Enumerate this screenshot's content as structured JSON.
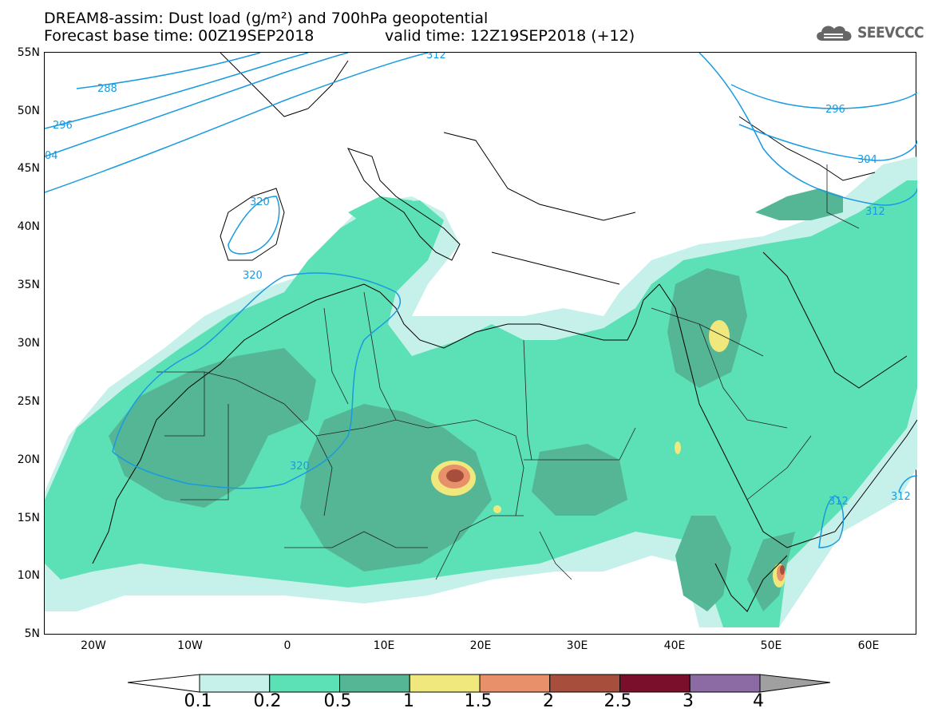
{
  "header": {
    "title_line1": "DREAM8-assim: Dust load (g/m²) and 700hPa geopotential",
    "title_line2": "Forecast base time: 00Z19SEP2018",
    "valid_time": "valid time: 12Z19SEP2018 (+12)",
    "logo_text": "SEEVCCC"
  },
  "map": {
    "lat_ticks": [
      "55N",
      "50N",
      "45N",
      "40N",
      "35N",
      "30N",
      "25N",
      "20N",
      "15N",
      "10N",
      "5N"
    ],
    "lon_ticks": [
      "20W",
      "10W",
      "0",
      "10E",
      "20E",
      "30E",
      "40E",
      "50E",
      "60E"
    ],
    "contour_labels": [
      {
        "label": "312",
        "color": "#1a9ae0"
      },
      {
        "label": "288",
        "color": "#1a9ae0"
      },
      {
        "label": "296",
        "color": "#1a9ae0"
      },
      {
        "label": "04",
        "color": "#1a9ae0"
      },
      {
        "label": "320",
        "color": "#1a9ae0"
      },
      {
        "label": "320",
        "color": "#1a9ae0"
      },
      {
        "label": "320",
        "color": "#1a9ae0"
      },
      {
        "label": "296",
        "color": "#1a9ae0"
      },
      {
        "label": "304",
        "color": "#1a9ae0"
      },
      {
        "label": "312",
        "color": "#1a9ae0"
      },
      {
        "label": "312",
        "color": "#1a9ae0"
      },
      {
        "label": "312",
        "color": "#1a9ae0"
      }
    ],
    "dust_colors": {
      "c0_1": "#c6f0ea",
      "c0_2": "#5ce0b6",
      "c0_5": "#54b694",
      "c1": "#f0e87c",
      "c1_5": "#e8906a",
      "c2": "#a84e3c",
      "c2_5": "#7a0f2c",
      "c3": "#8c6aa4",
      "c4": "#a0a0a0"
    }
  },
  "colorbar": {
    "labels": [
      "0.1",
      "0.2",
      "0.5",
      "1",
      "1.5",
      "2",
      "2.5",
      "3",
      "4"
    ],
    "colors": [
      "#c6f0ea",
      "#5ce0b6",
      "#54b694",
      "#f0e87c",
      "#e8906a",
      "#a84e3c",
      "#7a0f2c",
      "#8c6aa4",
      "#a0a0a0"
    ]
  }
}
